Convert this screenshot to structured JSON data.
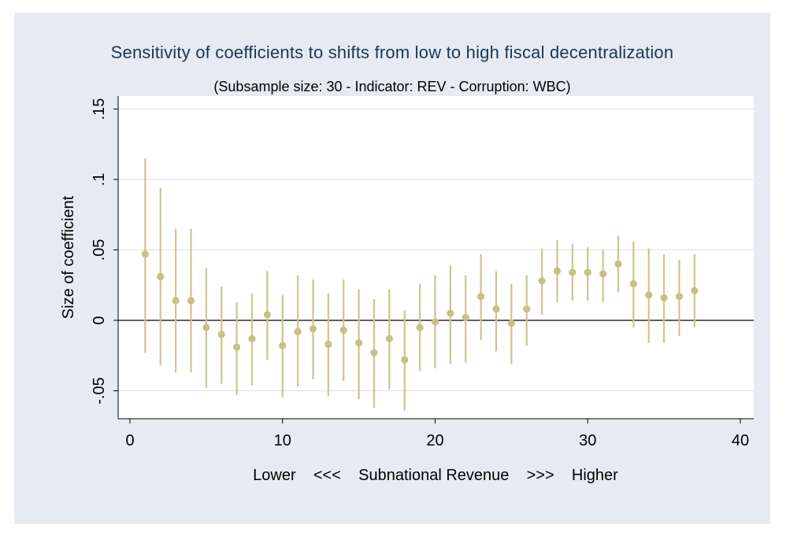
{
  "chart_data": {
    "type": "scatter",
    "title": "Sensitivity of coefficients to shifts from low to high fiscal decentralization",
    "subtitle": "(Subsample size: 30 - Indicator: REV - Corruption: WBC)",
    "xlabel": "Lower    <<<    Subnational Revenue    >>>    Higher",
    "ylabel": "Size of coefficient",
    "xlim": [
      -1,
      41
    ],
    "ylim": [
      -0.07,
      0.16
    ],
    "x_ticks": [
      0,
      10,
      20,
      30,
      40
    ],
    "x_tick_labels": [
      "0",
      "10",
      "20",
      "30",
      "40"
    ],
    "y_ticks": [
      -0.05,
      0,
      0.05,
      0.1,
      0.15
    ],
    "y_tick_labels": [
      "-.05",
      "0",
      ".05",
      ".1",
      ".15"
    ],
    "grid": true,
    "reference_line_y": 0,
    "colors": {
      "marker": "#c9bf88",
      "line": "#cfc48f",
      "background": "#e6ebf3",
      "plot": "#ffffff",
      "title": "#1b3653"
    },
    "series": [
      {
        "x": [
          1,
          2,
          3,
          4,
          5,
          6,
          7,
          8,
          9,
          10,
          11,
          12,
          13,
          14,
          15,
          16,
          17,
          18,
          19,
          20,
          21,
          22,
          23,
          24,
          25,
          26,
          27,
          28,
          29,
          30,
          31,
          32,
          33,
          34,
          35,
          36,
          37
        ],
        "y": [
          0.047,
          0.031,
          0.014,
          0.014,
          -0.005,
          -0.01,
          -0.019,
          -0.013,
          0.004,
          -0.018,
          -0.008,
          -0.006,
          -0.017,
          -0.007,
          -0.016,
          -0.023,
          -0.013,
          -0.028,
          -0.005,
          -0.001,
          0.005,
          0.002,
          0.017,
          0.008,
          -0.002,
          0.008,
          0.028,
          0.035,
          0.034,
          0.034,
          0.033,
          0.04,
          0.026,
          0.018,
          0.016,
          0.017,
          0.021
        ],
        "lower": [
          -0.023,
          -0.032,
          -0.037,
          -0.037,
          -0.048,
          -0.045,
          -0.053,
          -0.046,
          -0.028,
          -0.055,
          -0.047,
          -0.042,
          -0.054,
          -0.043,
          -0.056,
          -0.062,
          -0.049,
          -0.064,
          -0.036,
          -0.034,
          -0.031,
          -0.03,
          -0.014,
          -0.022,
          -0.031,
          -0.018,
          0.004,
          0.013,
          0.014,
          0.014,
          0.013,
          0.02,
          -0.005,
          -0.016,
          -0.016,
          -0.011,
          -0.005
        ],
        "upper": [
          0.115,
          0.094,
          0.065,
          0.065,
          0.037,
          0.024,
          0.013,
          0.019,
          0.035,
          0.018,
          0.032,
          0.029,
          0.019,
          0.029,
          0.022,
          0.015,
          0.022,
          0.007,
          0.026,
          0.032,
          0.039,
          0.032,
          0.047,
          0.035,
          0.026,
          0.032,
          0.051,
          0.057,
          0.054,
          0.052,
          0.05,
          0.06,
          0.056,
          0.051,
          0.047,
          0.043,
          0.047
        ]
      }
    ]
  }
}
